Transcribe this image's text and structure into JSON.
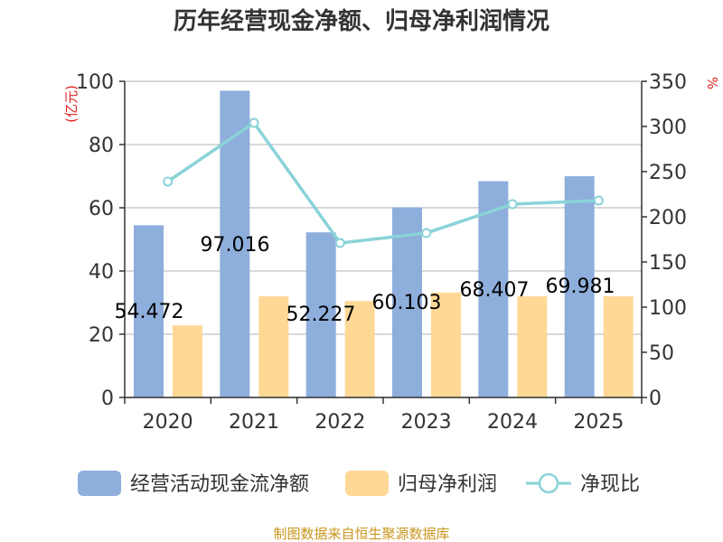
{
  "chart_data": {
    "type": "bar",
    "title": "历年经营现金净额、归母净利润情况",
    "categories": [
      "2020",
      "2021",
      "2022",
      "2023",
      "2024",
      "2025"
    ],
    "series": [
      {
        "name": "经营活动现金流净额",
        "type": "bar",
        "axis": "left",
        "color": "#8eaedc",
        "values": [
          54.472,
          97.016,
          52.227,
          60.103,
          68.407,
          69.981
        ],
        "labels": [
          "54.472",
          "97.016",
          "52.227",
          "60.103",
          "68.407",
          "69.981"
        ]
      },
      {
        "name": "归母净利润",
        "type": "bar",
        "axis": "left",
        "color": "#ffd896",
        "values": [
          22.8,
          32.0,
          30.5,
          33.2,
          32.0,
          32.0
        ]
      },
      {
        "name": "净现比",
        "type": "line",
        "axis": "right",
        "color": "#8ad3d8",
        "values": [
          239,
          304,
          171,
          182,
          214,
          218
        ]
      }
    ],
    "y_left": {
      "unit": "(亿元)",
      "min": 0,
      "max": 100,
      "ticks": [
        "0",
        "20",
        "40",
        "60",
        "80",
        "100"
      ]
    },
    "y_right": {
      "unit": "%",
      "min": 0,
      "max": 350,
      "ticks": [
        "0",
        "50",
        "100",
        "150",
        "200",
        "250",
        "300",
        "350"
      ]
    },
    "grid": true,
    "legend_position": "bottom"
  },
  "source": "制图数据来自恒生聚源数据库"
}
